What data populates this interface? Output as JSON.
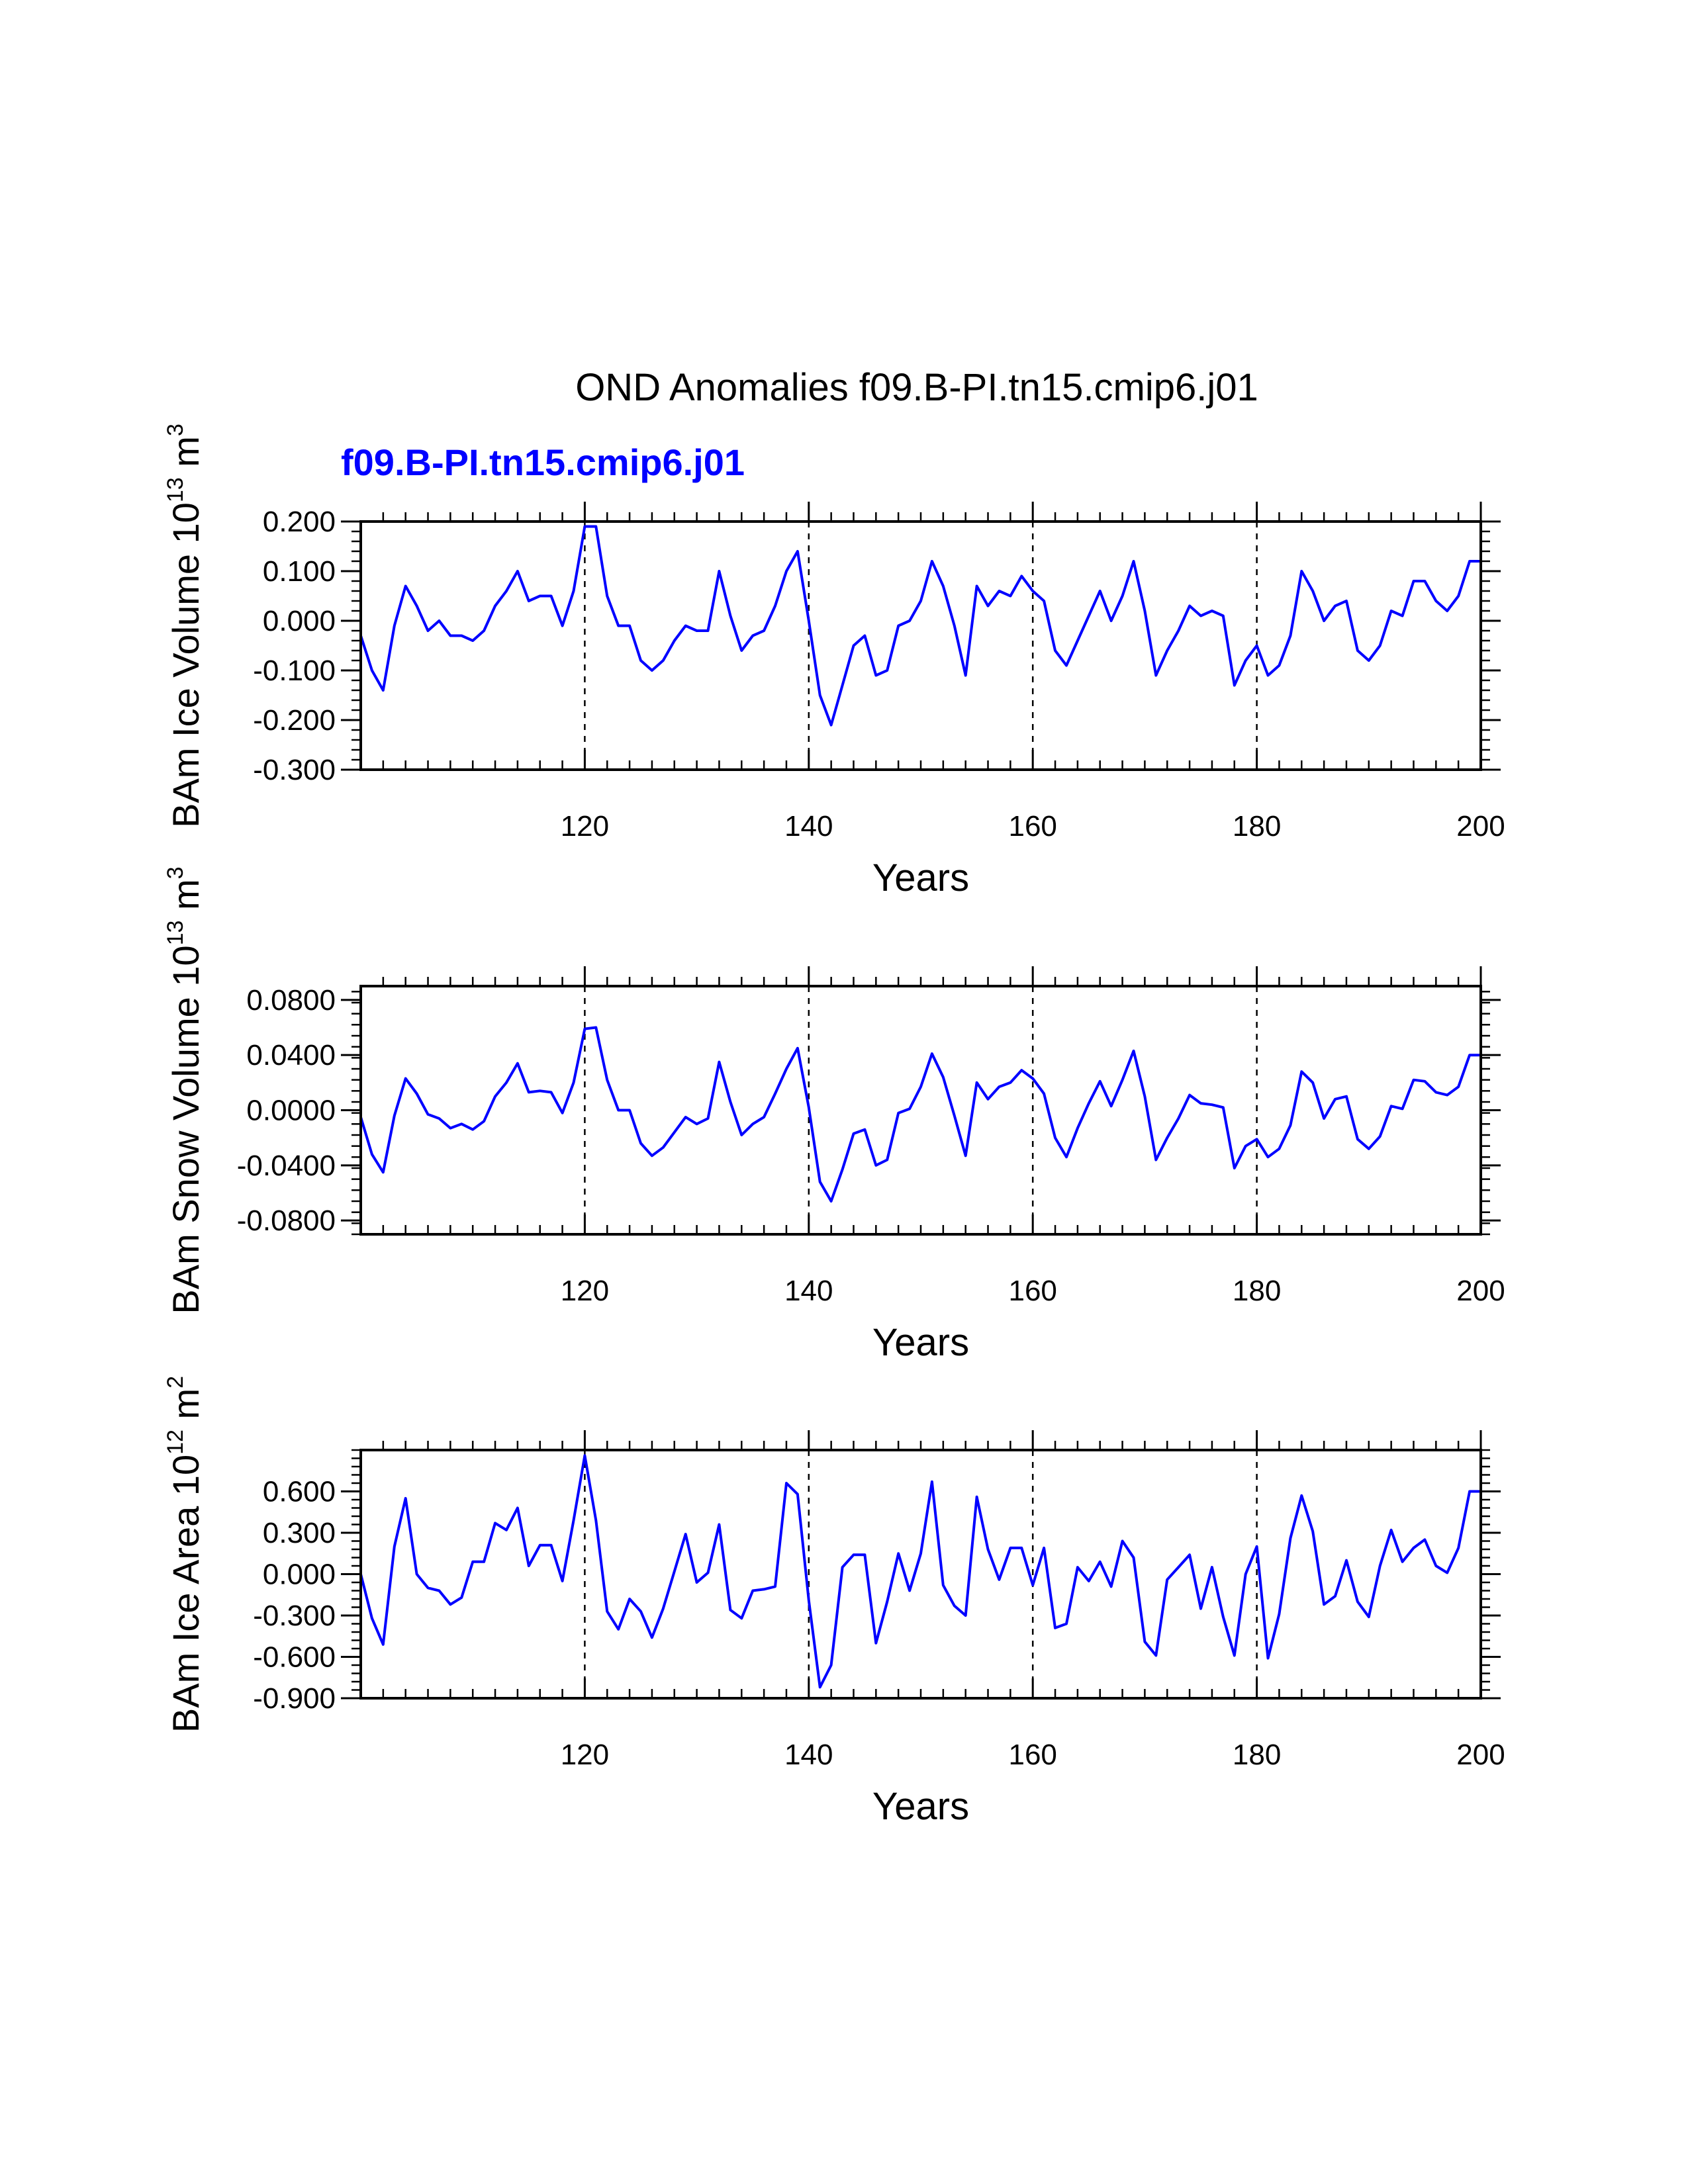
{
  "title": "OND Anomalies f09.B-PI.tn15.cmip6.j01",
  "case_label": "f09.B-PI.tn15.cmip6.j01",
  "colors": {
    "line": "#0000ff",
    "case_label": "#0000ff",
    "axis": "#000000"
  },
  "chart_data": [
    {
      "type": "line",
      "ylabel": {
        "main": "BAm Ice Volume 10",
        "exp": "13",
        "unit": " m",
        "unit_exp": "3"
      },
      "xlabel": "Years",
      "xlim": [
        100,
        200
      ],
      "ylim": [
        -0.3,
        0.2
      ],
      "xticks": [
        120,
        140,
        160,
        180,
        200
      ],
      "xtick_labels": [
        "120",
        "140",
        "160",
        "180",
        "200"
      ],
      "yticks": [
        -0.3,
        -0.2,
        -0.1,
        0.0,
        0.1,
        0.2
      ],
      "ytick_labels": [
        "-0.300",
        "-0.200",
        "-0.100",
        "0.000",
        "0.100",
        "0.200"
      ],
      "vlines": [
        120,
        140,
        160,
        180
      ],
      "x_start": 100,
      "values": [
        -0.03,
        -0.1,
        -0.14,
        -0.01,
        0.07,
        0.03,
        -0.02,
        0.0,
        -0.03,
        -0.03,
        -0.04,
        -0.02,
        0.03,
        0.06,
        0.1,
        0.04,
        0.05,
        0.05,
        -0.01,
        0.06,
        0.19,
        0.19,
        0.05,
        -0.01,
        -0.01,
        -0.08,
        -0.1,
        -0.08,
        -0.04,
        -0.01,
        -0.02,
        -0.02,
        0.1,
        0.01,
        -0.06,
        -0.03,
        -0.02,
        0.03,
        0.1,
        0.14,
        0.0,
        -0.15,
        -0.21,
        -0.13,
        -0.05,
        -0.03,
        -0.11,
        -0.1,
        -0.01,
        0.0,
        0.04,
        0.12,
        0.07,
        -0.01,
        -0.11,
        0.07,
        0.03,
        0.06,
        0.05,
        0.09,
        0.06,
        0.04,
        -0.06,
        -0.09,
        -0.04,
        0.01,
        0.06,
        0.0,
        0.05,
        0.12,
        0.02,
        -0.11,
        -0.06,
        -0.02,
        0.03,
        0.01,
        0.02,
        0.01,
        -0.13,
        -0.08,
        -0.05,
        -0.11,
        -0.09,
        -0.03,
        0.1,
        0.06,
        0.0,
        0.03,
        0.04,
        -0.06,
        -0.08,
        -0.05,
        0.02,
        0.01,
        0.08,
        0.08,
        0.04,
        0.02,
        0.05,
        0.12,
        0.12
      ]
    },
    {
      "type": "line",
      "ylabel": {
        "main": "BAm Snow Volume 10",
        "exp": "13",
        "unit": " m",
        "unit_exp": "3"
      },
      "xlabel": "Years",
      "xlim": [
        100,
        200
      ],
      "ylim": [
        -0.09,
        0.09
      ],
      "xticks": [
        120,
        140,
        160,
        180,
        200
      ],
      "xtick_labels": [
        "120",
        "140",
        "160",
        "180",
        "200"
      ],
      "yticks": [
        -0.08,
        -0.04,
        0.0,
        0.04,
        0.08
      ],
      "ytick_labels": [
        "-0.0800",
        "-0.0400",
        "0.0000",
        "0.0400",
        "0.0800"
      ],
      "vlines": [
        120,
        140,
        160,
        180
      ],
      "x_start": 100,
      "values": [
        -0.005,
        -0.032,
        -0.045,
        -0.004,
        0.023,
        0.012,
        -0.003,
        -0.006,
        -0.013,
        -0.01,
        -0.014,
        -0.008,
        0.01,
        0.02,
        0.034,
        0.013,
        0.014,
        0.013,
        -0.002,
        0.02,
        0.059,
        0.06,
        0.022,
        0.0,
        0.0,
        -0.024,
        -0.033,
        -0.027,
        -0.016,
        -0.005,
        -0.01,
        -0.006,
        0.035,
        0.006,
        -0.018,
        -0.01,
        -0.005,
        0.012,
        0.03,
        0.045,
        0.002,
        -0.052,
        -0.066,
        -0.043,
        -0.017,
        -0.014,
        -0.04,
        -0.036,
        -0.002,
        0.001,
        0.017,
        0.041,
        0.024,
        -0.004,
        -0.033,
        0.02,
        0.008,
        0.017,
        0.02,
        0.029,
        0.023,
        0.012,
        -0.02,
        -0.034,
        -0.013,
        0.005,
        0.021,
        0.003,
        0.022,
        0.043,
        0.01,
        -0.036,
        -0.02,
        -0.006,
        0.011,
        0.005,
        0.004,
        0.002,
        -0.042,
        -0.026,
        -0.021,
        -0.034,
        -0.028,
        -0.011,
        0.028,
        0.02,
        -0.006,
        0.008,
        0.01,
        -0.021,
        -0.028,
        -0.019,
        0.003,
        0.001,
        0.022,
        0.021,
        0.013,
        0.011,
        0.017,
        0.04,
        0.04
      ]
    },
    {
      "type": "line",
      "ylabel": {
        "main": "BAm Ice Area 10",
        "exp": "12",
        "unit": " m",
        "unit_exp": "2"
      },
      "xlabel": "Years",
      "xlim": [
        100,
        200
      ],
      "ylim": [
        -0.9,
        0.9
      ],
      "xticks": [
        120,
        140,
        160,
        180,
        200
      ],
      "xtick_labels": [
        "120",
        "140",
        "160",
        "180",
        "200"
      ],
      "yticks": [
        -0.9,
        -0.6,
        -0.3,
        0.0,
        0.3,
        0.6
      ],
      "ytick_labels": [
        "-0.900",
        "-0.600",
        "-0.300",
        "0.000",
        "0.300",
        "0.600"
      ],
      "vlines": [
        120,
        140,
        160,
        180
      ],
      "x_start": 100,
      "values": [
        0.0,
        -0.32,
        -0.51,
        0.2,
        0.55,
        0.0,
        -0.1,
        -0.12,
        -0.22,
        -0.17,
        0.09,
        0.09,
        0.37,
        0.32,
        0.48,
        0.06,
        0.21,
        0.21,
        -0.05,
        0.39,
        0.86,
        0.39,
        -0.27,
        -0.4,
        -0.18,
        -0.27,
        -0.46,
        -0.25,
        0.02,
        0.29,
        -0.06,
        0.01,
        0.36,
        -0.26,
        -0.32,
        -0.12,
        -0.11,
        -0.09,
        0.66,
        0.58,
        -0.19,
        -0.82,
        -0.66,
        0.05,
        0.14,
        0.14,
        -0.5,
        -0.2,
        0.15,
        -0.12,
        0.15,
        0.67,
        -0.08,
        -0.23,
        -0.3,
        0.56,
        0.18,
        -0.04,
        0.19,
        0.19,
        -0.08,
        0.19,
        -0.39,
        -0.36,
        0.05,
        -0.05,
        0.09,
        -0.09,
        0.24,
        0.12,
        -0.49,
        -0.59,
        -0.04,
        0.05,
        0.14,
        -0.25,
        0.05,
        -0.31,
        -0.59,
        0.0,
        0.2,
        -0.61,
        -0.29,
        0.26,
        0.57,
        0.31,
        -0.22,
        -0.16,
        0.1,
        -0.2,
        -0.31,
        0.06,
        0.32,
        0.09,
        0.19,
        0.25,
        0.06,
        0.01,
        0.19,
        0.6,
        0.6
      ]
    }
  ]
}
